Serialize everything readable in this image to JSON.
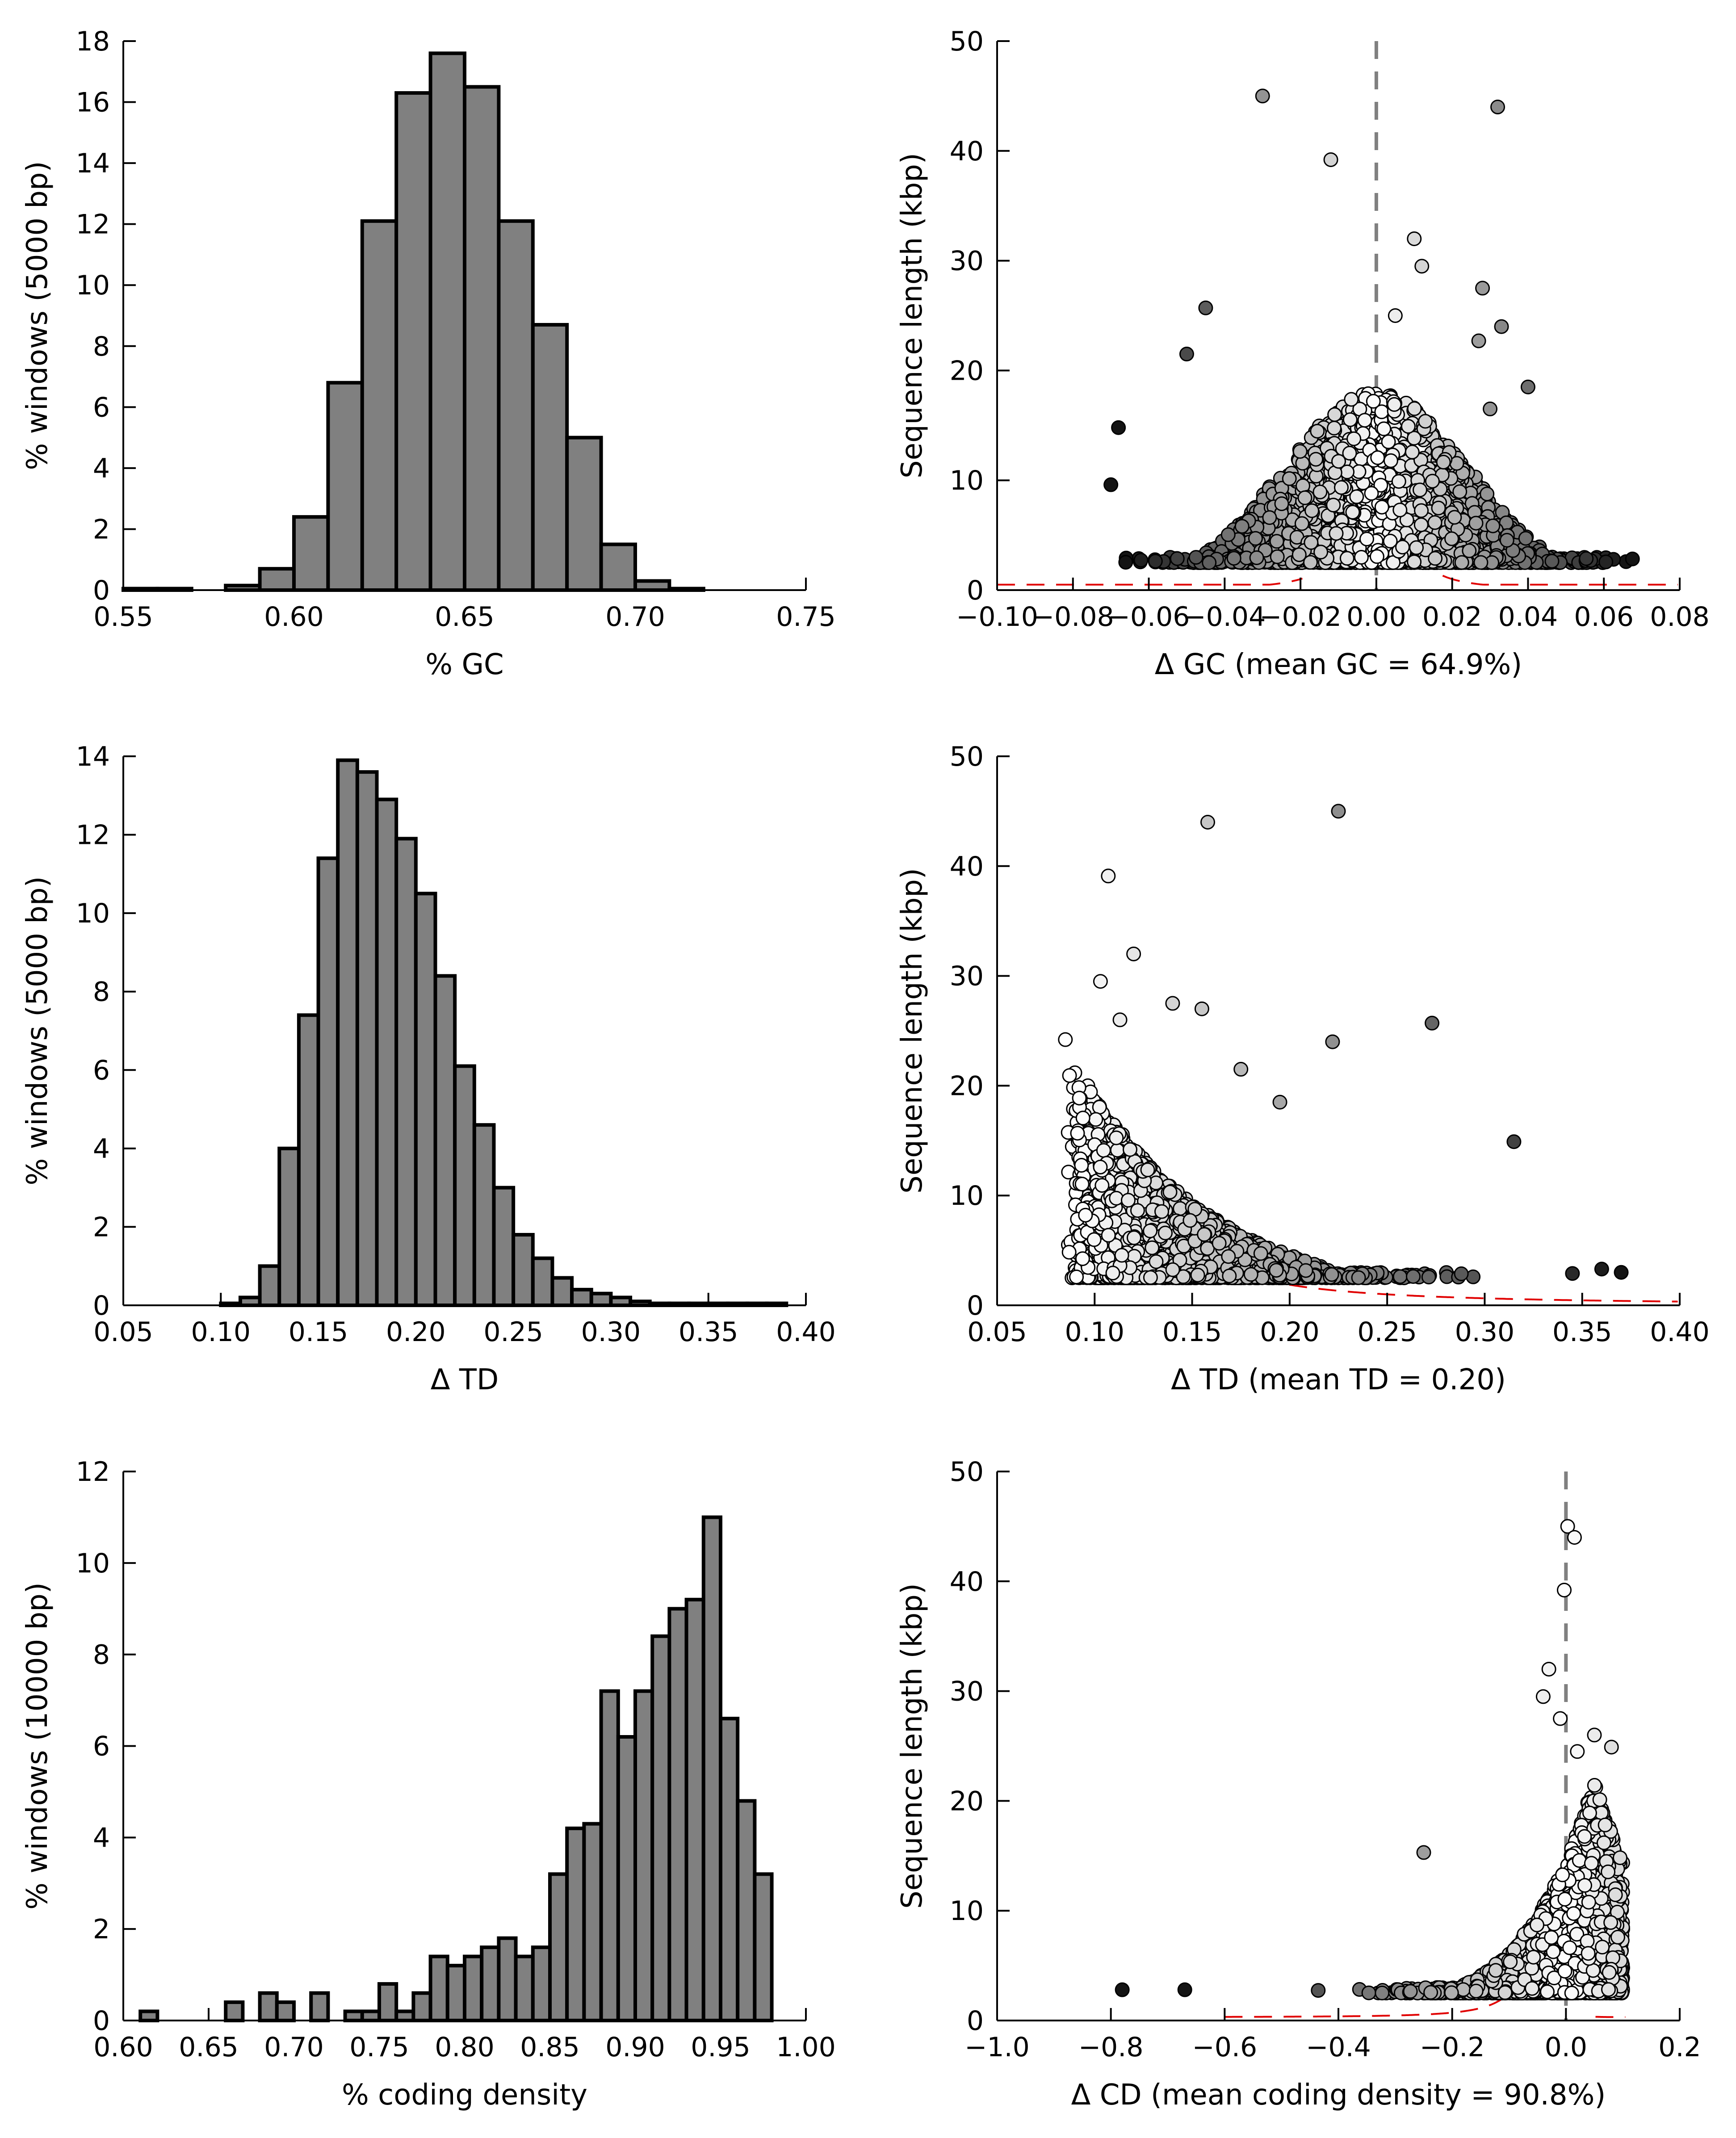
{
  "chart_data": [
    {
      "type": "bar",
      "xlabel": "% GC",
      "ylabel": "% windows (5000 bp)",
      "xlim": [
        0.55,
        0.75
      ],
      "ylim": [
        0,
        18
      ],
      "xticks": [
        "0.55",
        "0.60",
        "0.65",
        "0.70",
        "0.75"
      ],
      "yticks": [
        "0",
        "2",
        "4",
        "6",
        "8",
        "10",
        "12",
        "14",
        "16",
        "18"
      ],
      "bin_edges": [
        0.55,
        0.56,
        0.57,
        0.58,
        0.59,
        0.6,
        0.61,
        0.62,
        0.63,
        0.64,
        0.65,
        0.66,
        0.67,
        0.68,
        0.69,
        0.7,
        0.71,
        0.72
      ],
      "values": [
        0.05,
        0.05,
        0.0,
        0.15,
        0.7,
        2.4,
        6.8,
        12.1,
        16.3,
        17.6,
        16.5,
        12.1,
        8.7,
        5.0,
        1.5,
        0.3,
        0.05
      ]
    },
    {
      "type": "scatter",
      "xlabel": "Δ GC (mean GC = 64.9%)",
      "ylabel": "Sequence length (kbp)",
      "xlim": [
        -0.1,
        0.08
      ],
      "ylim": [
        0,
        50
      ],
      "xticks": [
        "−0.10",
        "−0.08",
        "−0.06",
        "−0.04",
        "−0.02",
        "0.00",
        "0.02",
        "0.04",
        "0.06",
        "0.08"
      ],
      "yticks": [
        "0",
        "10",
        "20",
        "30",
        "40",
        "50"
      ],
      "vline": 0.0,
      "envelope": {
        "center": 0.0,
        "k": 0.032,
        "ymin": 0.5
      },
      "points": [
        [
          -0.03,
          45
        ],
        [
          0.032,
          44
        ],
        [
          -0.012,
          39.2
        ],
        [
          0.01,
          32
        ],
        [
          0.028,
          27.5
        ],
        [
          -0.045,
          25.7
        ],
        [
          0.033,
          24
        ],
        [
          -0.068,
          14.8
        ],
        [
          -0.05,
          21.5
        ],
        [
          0.027,
          22.7
        ],
        [
          0.04,
          18.5
        ],
        [
          -0.07,
          9.6
        ],
        [
          0.012,
          29.5
        ],
        [
          0.005,
          25
        ],
        [
          0.03,
          16.5
        ]
      ],
      "cloud": {
        "x_range": [
          -0.07,
          0.068
        ],
        "y_min": 2.5,
        "y_max": 20,
        "spread_x": 0.03
      }
    },
    {
      "type": "bar",
      "xlabel": "Δ TD",
      "ylabel": "% windows (5000 bp)",
      "xlim": [
        0.05,
        0.4
      ],
      "ylim": [
        0,
        14
      ],
      "xticks": [
        "0.05",
        "0.10",
        "0.15",
        "0.20",
        "0.25",
        "0.30",
        "0.35",
        "0.40"
      ],
      "yticks": [
        "0",
        "2",
        "4",
        "6",
        "8",
        "10",
        "12",
        "14"
      ],
      "bin_edges": [
        0.1,
        0.11,
        0.12,
        0.13,
        0.14,
        0.15,
        0.16,
        0.17,
        0.18,
        0.19,
        0.2,
        0.21,
        0.22,
        0.23,
        0.24,
        0.25,
        0.26,
        0.27,
        0.28,
        0.29,
        0.3,
        0.31,
        0.32,
        0.33,
        0.34,
        0.35,
        0.36,
        0.37,
        0.38,
        0.39
      ],
      "values": [
        0.05,
        0.2,
        1.0,
        4.0,
        7.4,
        11.4,
        13.9,
        13.6,
        12.9,
        11.9,
        10.5,
        8.4,
        6.1,
        4.6,
        3.0,
        1.8,
        1.2,
        0.7,
        0.4,
        0.3,
        0.2,
        0.1,
        0.05,
        0.05,
        0.05,
        0.05,
        0.05,
        0.05,
        0.05
      ]
    },
    {
      "type": "scatter",
      "xlabel": "Δ TD (mean TD = 0.20)",
      "ylabel": "Sequence length (kbp)",
      "xlim": [
        0.05,
        0.4
      ],
      "ylim": [
        0,
        50
      ],
      "xticks": [
        "0.05",
        "0.10",
        "0.15",
        "0.20",
        "0.25",
        "0.30",
        "0.35",
        "0.40"
      ],
      "yticks": [
        "0",
        "10",
        "20",
        "30",
        "40",
        "50"
      ],
      "envelope": {
        "center": 0.1,
        "k": 2.9,
        "x_from": 0.16
      },
      "points": [
        [
          0.225,
          45
        ],
        [
          0.158,
          44
        ],
        [
          0.107,
          39.1
        ],
        [
          0.12,
          32
        ],
        [
          0.103,
          29.5
        ],
        [
          0.14,
          27.5
        ],
        [
          0.155,
          27
        ],
        [
          0.273,
          25.7
        ],
        [
          0.222,
          24
        ],
        [
          0.085,
          24.2
        ],
        [
          0.113,
          26
        ],
        [
          0.315,
          14.9
        ],
        [
          0.175,
          21.5
        ],
        [
          0.37,
          3.0
        ],
        [
          0.36,
          3.3
        ],
        [
          0.345,
          2.9
        ],
        [
          0.195,
          18.5
        ]
      ],
      "cloud": {
        "x_range": [
          0.082,
          0.35
        ],
        "y_min": 2.5,
        "y_max": 22,
        "decay": 0.07
      }
    },
    {
      "type": "bar",
      "xlabel": "% coding density",
      "ylabel": "% windows (10000 bp)",
      "xlim": [
        0.6,
        1.0
      ],
      "ylim": [
        0,
        12
      ],
      "xticks": [
        "0.60",
        "0.65",
        "0.70",
        "0.75",
        "0.80",
        "0.85",
        "0.90",
        "0.95",
        "1.00"
      ],
      "yticks": [
        "0",
        "2",
        "4",
        "6",
        "8",
        "10",
        "12"
      ],
      "bin_edges": [
        0.61,
        0.62,
        0.63,
        0.64,
        0.65,
        0.66,
        0.67,
        0.68,
        0.69,
        0.7,
        0.71,
        0.72,
        0.73,
        0.74,
        0.75,
        0.76,
        0.77,
        0.78,
        0.79,
        0.8,
        0.81,
        0.82,
        0.83,
        0.84,
        0.85,
        0.86,
        0.87,
        0.88,
        0.89,
        0.9,
        0.91,
        0.92,
        0.93,
        0.94,
        0.95,
        0.96,
        0.97,
        0.98,
        0.99
      ],
      "values": [
        0.2,
        0,
        0,
        0,
        0,
        0.4,
        0,
        0.6,
        0.4,
        0,
        0.6,
        0,
        0.2,
        0.2,
        0.8,
        0.2,
        0.6,
        1.4,
        1.2,
        1.4,
        1.6,
        1.8,
        1.4,
        1.6,
        3.2,
        4.2,
        4.3,
        7.2,
        6.2,
        7.2,
        8.4,
        9.0,
        9.2,
        11.0,
        6.6,
        4.8,
        3.2,
        0
      ]
    },
    {
      "type": "scatter",
      "xlabel": "Δ CD (mean coding density = 90.8%)",
      "ylabel": "Sequence length (kbp)",
      "xlim": [
        -1.0,
        0.2
      ],
      "ylim": [
        0,
        50
      ],
      "xticks": [
        "−1.0",
        "−0.8",
        "−0.6",
        "−0.4",
        "−0.2",
        "0.0",
        "0.2"
      ],
      "yticks": [
        "0",
        "10",
        "20",
        "30",
        "40",
        "50"
      ],
      "vline": 0.0,
      "envelope": {
        "center": -0.025,
        "k": 0.1,
        "x_left_min": -0.6,
        "x_right_max": 0.1
      },
      "points": [
        [
          0.003,
          45
        ],
        [
          0.015,
          44
        ],
        [
          -0.003,
          39.2
        ],
        [
          -0.03,
          32
        ],
        [
          -0.04,
          29.5
        ],
        [
          -0.01,
          27.5
        ],
        [
          0.05,
          26
        ],
        [
          0.08,
          24.9
        ],
        [
          -0.78,
          2.8
        ],
        [
          -0.67,
          2.8
        ],
        [
          -0.25,
          15.3
        ],
        [
          0.02,
          24.5
        ]
      ],
      "cloud": {
        "x_range": [
          -0.6,
          0.1
        ],
        "y_min": 2.5,
        "y_max": 22
      }
    }
  ]
}
